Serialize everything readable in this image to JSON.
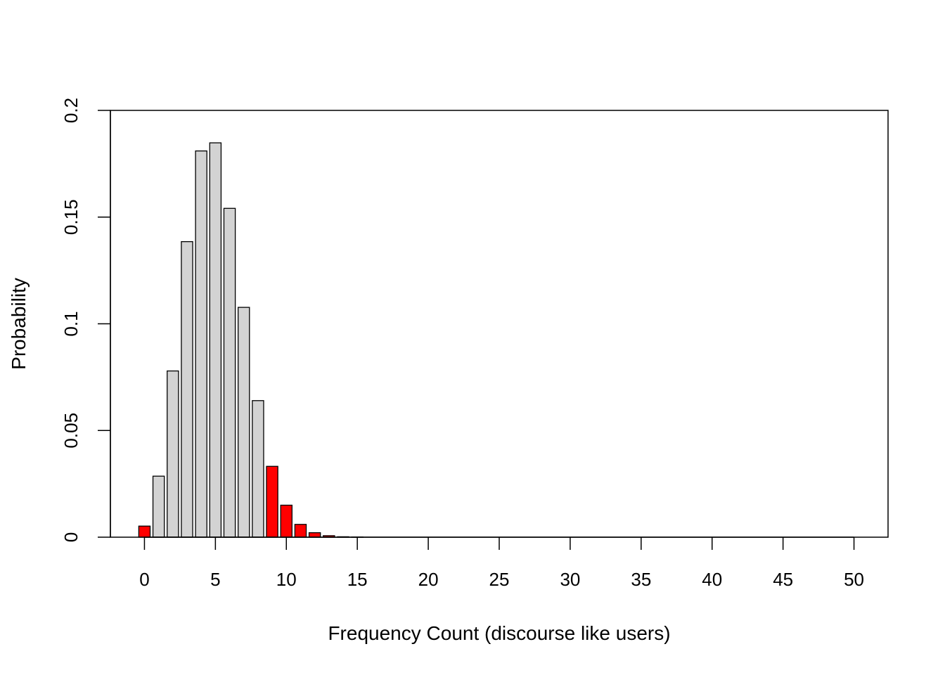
{
  "chart_data": {
    "type": "bar",
    "title": "",
    "xlabel": "Frequency Count (discourse like users)",
    "ylabel": "Probability",
    "xlim": [
      -2.4,
      52.4
    ],
    "ylim": [
      0,
      0.2
    ],
    "x_ticks": [
      0,
      5,
      10,
      15,
      20,
      25,
      30,
      35,
      40,
      45,
      50
    ],
    "x_tick_labels": [
      "0",
      "5",
      "10",
      "15",
      "20",
      "25",
      "30",
      "35",
      "40",
      "45",
      "50"
    ],
    "y_ticks": [
      0,
      0.05,
      0.1,
      0.15,
      0.2
    ],
    "y_tick_labels": [
      "0",
      "0.05",
      "0.1",
      "0.15",
      "0.2"
    ],
    "grid": false,
    "bar_colors": {
      "highlight": "#ff0000",
      "normal": "#d3d3d3",
      "border": "#000000"
    },
    "x": [
      0,
      1,
      2,
      3,
      4,
      5,
      6,
      7,
      8,
      9,
      10,
      11,
      12,
      13,
      14,
      15,
      16,
      17,
      18,
      19,
      20,
      21,
      22,
      23,
      24,
      25,
      26,
      27,
      28,
      29,
      30,
      31,
      32,
      33,
      34,
      35,
      36,
      37,
      38,
      39,
      40,
      41,
      42,
      43,
      44,
      45,
      46,
      47,
      48,
      49,
      50
    ],
    "values": [
      0.0052,
      0.0286,
      0.0779,
      0.1385,
      0.181,
      0.1848,
      0.1541,
      0.1077,
      0.064,
      0.0332,
      0.015,
      0.006,
      0.0021,
      0.0007,
      0.0002,
      0.0001,
      0,
      0,
      0,
      0,
      0,
      0,
      0,
      0,
      0,
      0,
      0,
      0,
      0,
      0,
      0,
      0,
      0,
      0,
      0,
      0,
      0,
      0,
      0,
      0,
      0,
      0,
      0,
      0,
      0,
      0,
      0,
      0,
      0,
      0,
      0
    ],
    "highlighted": [
      true,
      false,
      false,
      false,
      false,
      false,
      false,
      false,
      false,
      true,
      true,
      true,
      true,
      true,
      true,
      true,
      true,
      true,
      true,
      true,
      true,
      true,
      true,
      true,
      true,
      true,
      true,
      true,
      true,
      true,
      true,
      true,
      true,
      true,
      true,
      true,
      true,
      true,
      true,
      true,
      true,
      true,
      true,
      true,
      true,
      true,
      true,
      true,
      true,
      true,
      true
    ]
  }
}
